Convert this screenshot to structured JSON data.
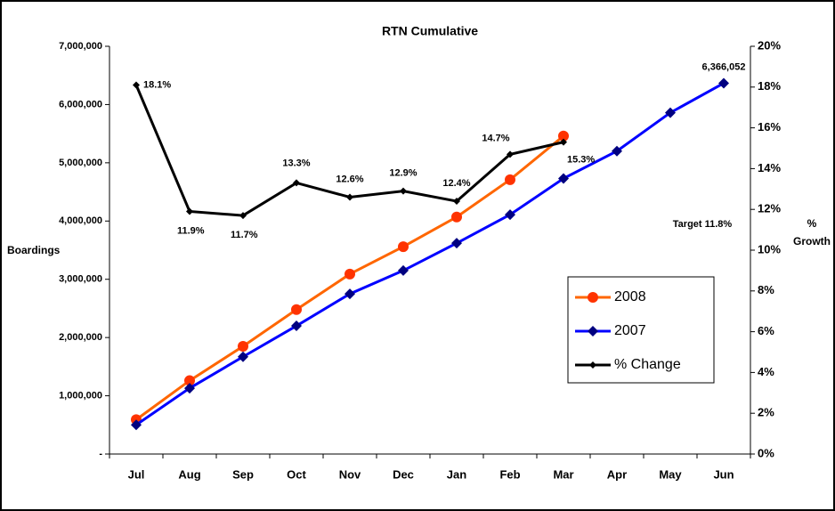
{
  "chart_data": {
    "type": "line",
    "title": "RTN Cumulative",
    "y_label": "Boardings",
    "y2_label": "% Growth",
    "annotation": "Target 11.8%",
    "categories": [
      "Jul",
      "Aug",
      "Sep",
      "Oct",
      "Nov",
      "Dec",
      "Jan",
      "Feb",
      "Mar",
      "Apr",
      "May",
      "Jun"
    ],
    "ylim": [
      0,
      7000000
    ],
    "yticks": [
      {
        "value": 0,
        "label": "-"
      },
      {
        "value": 1000000,
        "label": "1,000,000"
      },
      {
        "value": 2000000,
        "label": "2,000,000"
      },
      {
        "value": 3000000,
        "label": "3,000,000"
      },
      {
        "value": 4000000,
        "label": "4,000,000"
      },
      {
        "value": 5000000,
        "label": "5,000,000"
      },
      {
        "value": 6000000,
        "label": "6,000,000"
      },
      {
        "value": 7000000,
        "label": "7,000,000"
      }
    ],
    "y2lim": [
      0,
      20
    ],
    "y2ticks": [
      {
        "value": 0,
        "label": "0%"
      },
      {
        "value": 2,
        "label": "2%"
      },
      {
        "value": 4,
        "label": "4%"
      },
      {
        "value": 6,
        "label": "6%"
      },
      {
        "value": 8,
        "label": "8%"
      },
      {
        "value": 10,
        "label": "10%"
      },
      {
        "value": 12,
        "label": "12%"
      },
      {
        "value": 14,
        "label": "14%"
      },
      {
        "value": 16,
        "label": "16%"
      },
      {
        "value": 18,
        "label": "18%"
      },
      {
        "value": 20,
        "label": "20%"
      }
    ],
    "series": [
      {
        "name": "2008",
        "color": "#ff6600",
        "marker_color": "#ff3300",
        "marker": "circle",
        "values": [
          590000,
          1260000,
          1850000,
          2480000,
          3090000,
          3560000,
          4070000,
          4710000,
          5460000,
          null,
          null,
          null
        ]
      },
      {
        "name": "2007",
        "color": "#0000ff",
        "marker_color": "#000080",
        "marker": "diamond",
        "values": [
          500000,
          1130000,
          1670000,
          2200000,
          2750000,
          3150000,
          3620000,
          4110000,
          4730000,
          5200000,
          5860000,
          6366052
        ],
        "value_labels": [
          null,
          null,
          null,
          null,
          null,
          null,
          null,
          null,
          null,
          null,
          null,
          "6,366,052"
        ]
      },
      {
        "name": "% Change",
        "color": "#000000",
        "marker_color": "#000000",
        "marker": "small-diamond",
        "axis": "y2",
        "values": [
          18.1,
          11.9,
          11.7,
          13.3,
          12.6,
          12.9,
          12.4,
          14.7,
          15.3,
          null,
          null,
          null
        ],
        "value_labels": [
          "18.1%",
          "11.9%",
          "11.7%",
          "13.3%",
          "12.6%",
          "12.9%",
          "12.4%",
          "14.7%",
          "15.3%",
          null,
          null,
          null
        ]
      }
    ],
    "legend": "lower-right"
  }
}
